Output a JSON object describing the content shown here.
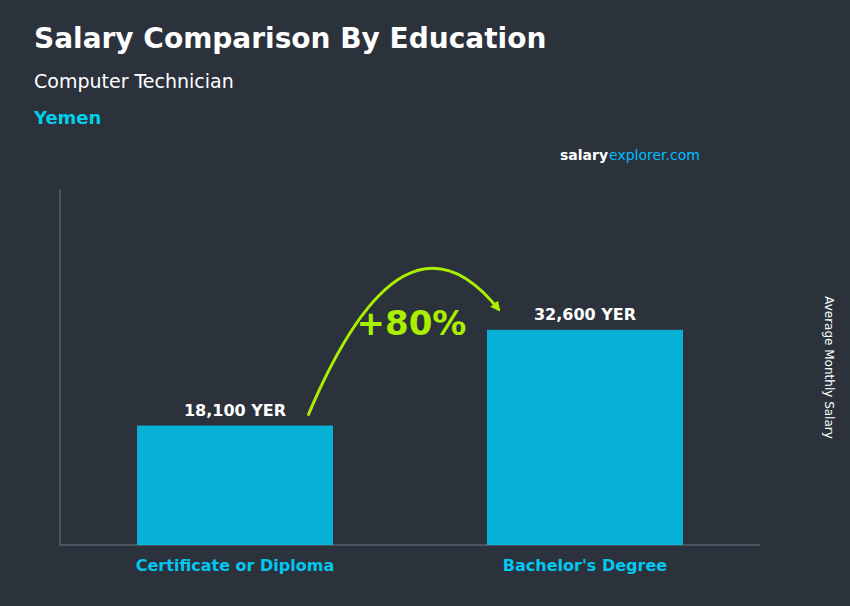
{
  "chart_data": {
    "type": "bar",
    "title": "Salary Comparison By Education",
    "subtitle": "Computer Technician",
    "annotations": [
      "Yemen",
      "salary",
      "explorer.com",
      "+80%"
    ],
    "y_label": "Average Monthly Salary",
    "categories": [
      "Certificate or Diploma",
      "Bachelor's Degree"
    ],
    "values": [
      18100,
      32600
    ],
    "value_labels": [
      "18,100 YER",
      "32,600 YER"
    ],
    "data_labels": true,
    "color": "#00C8F0",
    "ylim": [
      0,
      53790
    ],
    "tick_labels": false,
    "grid": false
  }
}
